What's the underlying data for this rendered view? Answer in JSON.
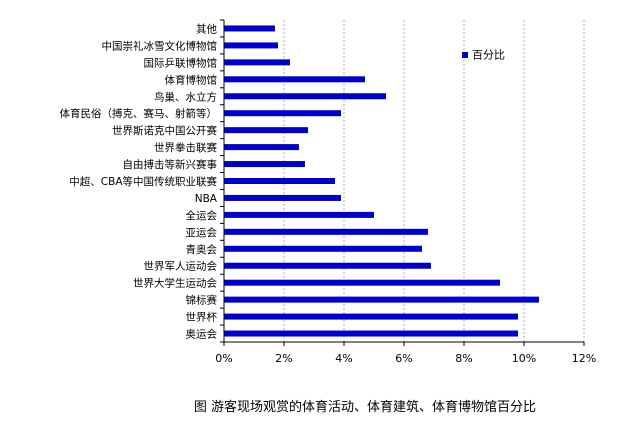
{
  "chart_data": {
    "type": "bar",
    "orientation": "horizontal",
    "categories": [
      "其他",
      "中国崇礼冰雪文化博物馆",
      "国际乒联博物馆",
      "体育博物馆",
      "鸟巢、水立方",
      "体育民俗（搏克、赛马、射箭等）",
      "世界斯诺克中国公开赛",
      "世界拳击联赛",
      "自由搏击等新兴赛事",
      "中超、CBA等中国传统职业联赛",
      "NBA",
      "全运会",
      "亚运会",
      "青奥会",
      "世界军人运动会",
      "世界大学生运动会",
      "锦标赛",
      "世界杯",
      "奥运会"
    ],
    "series": [
      {
        "name": "百分比",
        "values": [
          1.7,
          1.8,
          2.2,
          4.7,
          5.4,
          3.9,
          2.8,
          2.5,
          2.7,
          3.7,
          3.9,
          5.0,
          6.8,
          6.6,
          6.9,
          9.2,
          10.5,
          9.8,
          9.8
        ]
      }
    ],
    "xlim": [
      0,
      12
    ],
    "x_ticks": [
      "0%",
      "2%",
      "4%",
      "6%",
      "8%",
      "10%",
      "12%"
    ],
    "grid": "vertical dashed",
    "legend_position": "top-right",
    "bar_color": "#0000cc",
    "caption": "图  游客现场观赏的体育活动、体育建筑、体育博物馆百分比"
  }
}
